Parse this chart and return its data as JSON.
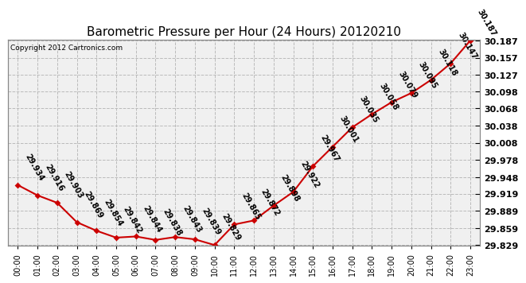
{
  "title": "Barometric Pressure per Hour (24 Hours) 20120210",
  "copyright": "Copyright 2012 Cartronics.com",
  "hours": [
    "00:00",
    "01:00",
    "02:00",
    "03:00",
    "04:00",
    "05:00",
    "06:00",
    "07:00",
    "08:00",
    "09:00",
    "10:00",
    "11:00",
    "12:00",
    "13:00",
    "14:00",
    "15:00",
    "16:00",
    "17:00",
    "18:00",
    "19:00",
    "20:00",
    "21:00",
    "22:00",
    "23:00"
  ],
  "values": [
    29.934,
    29.916,
    29.903,
    29.869,
    29.854,
    29.842,
    29.844,
    29.838,
    29.843,
    29.839,
    29.829,
    29.865,
    29.872,
    29.898,
    29.922,
    29.967,
    30.001,
    30.035,
    30.058,
    30.079,
    30.095,
    30.118,
    30.147,
    30.187
  ],
  "yticks": [
    29.829,
    29.859,
    29.889,
    29.919,
    29.948,
    29.978,
    30.008,
    30.038,
    30.068,
    30.098,
    30.127,
    30.157,
    30.187
  ],
  "line_color": "#cc0000",
  "marker_color": "#cc0000",
  "bg_color": "#ffffff",
  "plot_bg_color": "#f0f0f0",
  "grid_color": "#bbbbbb",
  "title_fontsize": 11,
  "annotation_fontsize": 7,
  "tick_fontsize": 8
}
